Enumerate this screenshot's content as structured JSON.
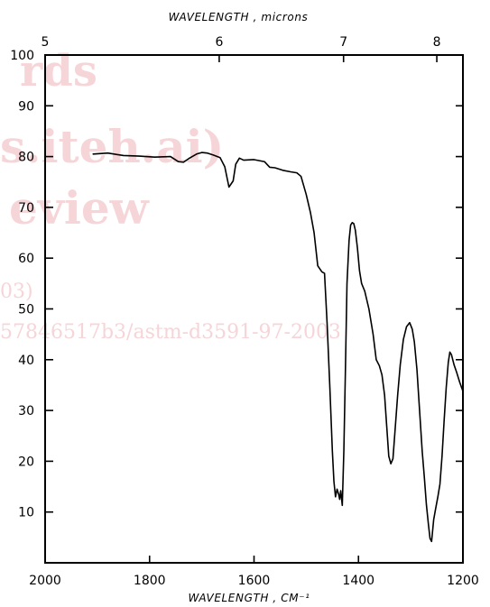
{
  "watermark": {
    "lines": [
      "rds",
      "s.iteh.ai)",
      "eview",
      "03)",
      "57846517b3/astm-d3591-97-2003"
    ],
    "color": "#f3c7cc"
  },
  "chart_data": {
    "type": "line",
    "title": "",
    "top_axis_label": "WAVELENGTH , microns",
    "bottom_axis_label": "WAVELENGTH , CM⁻¹",
    "xlim": [
      2000,
      1200
    ],
    "ylim": [
      0,
      100
    ],
    "x_ticks": [
      2000,
      1800,
      1600,
      1400,
      1200
    ],
    "x_tick_labels": [
      "2000",
      "1800",
      "1600",
      "1400",
      "1200"
    ],
    "y_ticks": [
      10,
      20,
      30,
      40,
      50,
      60,
      70,
      80,
      90,
      100
    ],
    "y_tick_labels": [
      "10",
      "20",
      "30",
      "40",
      "50",
      "60",
      "70",
      "80",
      "90",
      "100"
    ],
    "top_ticks": [
      5,
      6,
      7,
      8
    ],
    "top_tick_labels": [
      "5",
      "6",
      "7",
      "8"
    ],
    "grid": false,
    "series": [
      {
        "x": [
          1908,
          1880,
          1850,
          1820,
          1790,
          1760,
          1745,
          1735,
          1725,
          1710,
          1700,
          1690,
          1678,
          1665,
          1656,
          1648,
          1640,
          1635,
          1628,
          1620,
          1600,
          1580,
          1570,
          1560,
          1545,
          1530,
          1518,
          1510,
          1500,
          1492,
          1485,
          1478,
          1470,
          1465,
          1460,
          1455,
          1450,
          1447,
          1444,
          1441,
          1438,
          1436,
          1434,
          1431,
          1428,
          1425,
          1422,
          1418,
          1415,
          1412,
          1409,
          1406,
          1402,
          1398,
          1394,
          1388,
          1380,
          1372,
          1366,
          1360,
          1355,
          1350,
          1346,
          1342,
          1338,
          1334,
          1330,
          1325,
          1320,
          1314,
          1308,
          1302,
          1297,
          1293,
          1288,
          1283,
          1278,
          1274,
          1270,
          1266,
          1263,
          1260,
          1256,
          1252,
          1248,
          1244,
          1240,
          1236,
          1232,
          1228,
          1225,
          1222,
          1217,
          1212,
          1206,
          1200
        ],
        "y": [
          80.5,
          80.7,
          80.2,
          80.1,
          79.9,
          80.0,
          79.0,
          78.9,
          79.6,
          80.5,
          80.8,
          80.7,
          80.3,
          79.8,
          78.0,
          74.0,
          75.2,
          78.5,
          79.7,
          79.3,
          79.4,
          79.0,
          77.9,
          77.8,
          77.3,
          77.0,
          76.8,
          76.1,
          72.5,
          69.0,
          65.0,
          58.5,
          57.3,
          57.0,
          47.0,
          35.0,
          22.0,
          16.0,
          13.0,
          14.5,
          13.5,
          12.5,
          14.2,
          11.3,
          22.0,
          38.0,
          55.0,
          63.5,
          66.5,
          67.0,
          66.8,
          65.5,
          62.0,
          57.5,
          55.0,
          53.5,
          50.0,
          45.0,
          40.0,
          38.8,
          37.0,
          33.0,
          27.0,
          21.0,
          19.5,
          20.5,
          26.0,
          33.0,
          39.0,
          44.0,
          46.5,
          47.3,
          46.0,
          43.5,
          38.0,
          30.0,
          22.0,
          17.0,
          11.5,
          7.5,
          4.8,
          4.2,
          8.5,
          10.8,
          13.0,
          15.5,
          21.0,
          28.0,
          34.5,
          39.5,
          41.5,
          41.0,
          39.0,
          37.5,
          35.5,
          33.8
        ]
      }
    ]
  }
}
